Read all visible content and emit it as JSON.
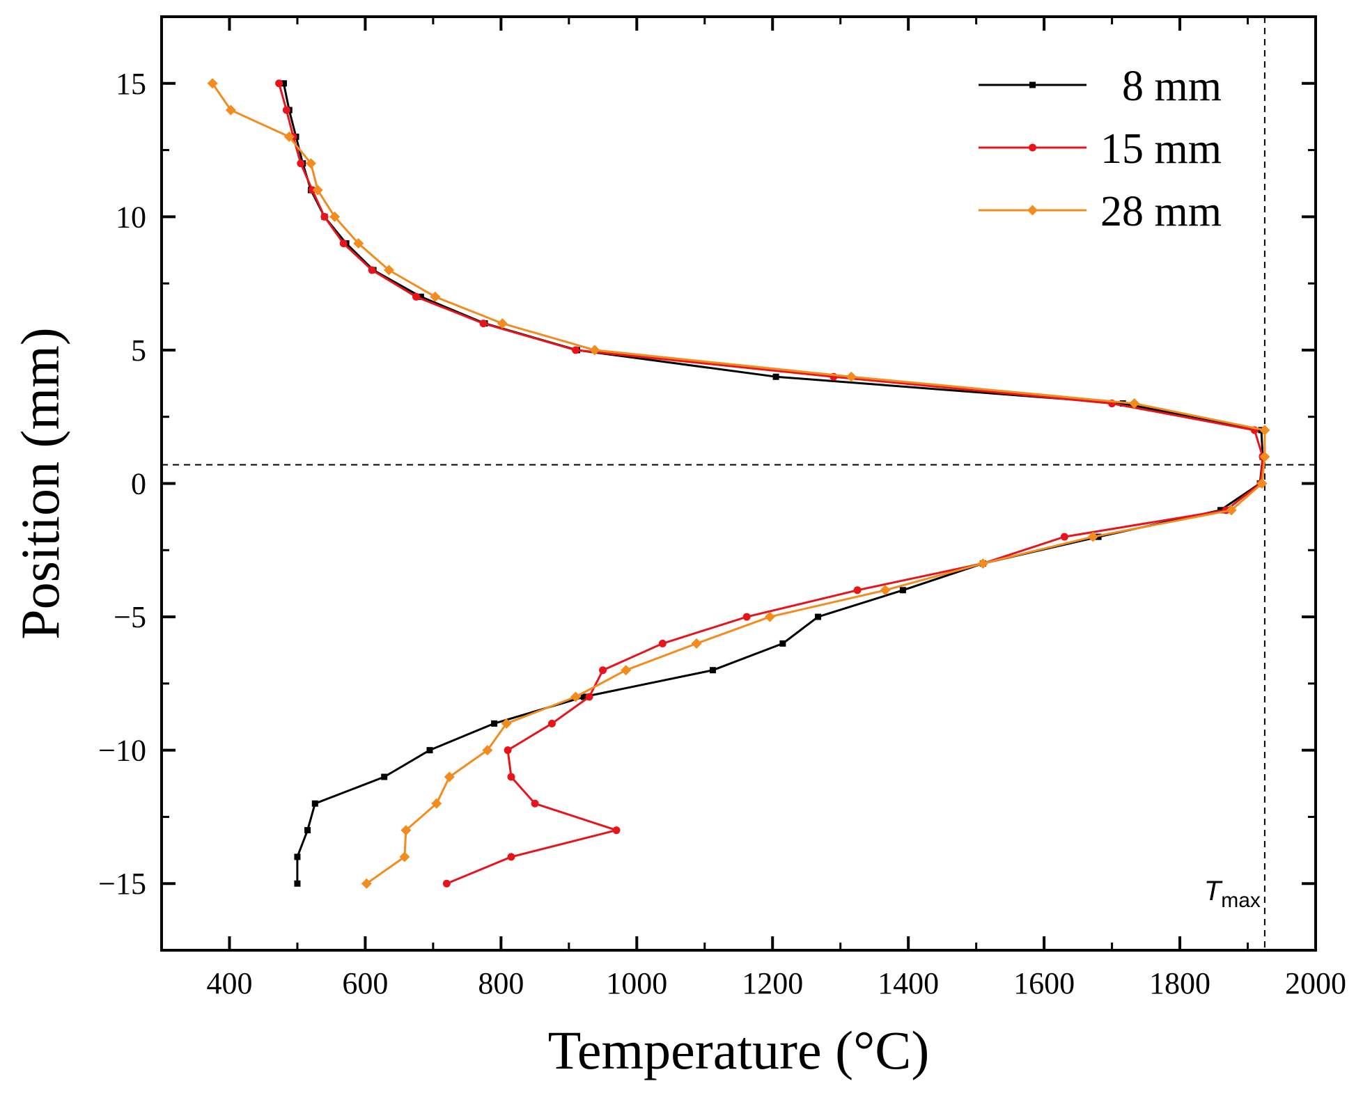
{
  "chart_data": {
    "type": "line",
    "xlabel": "Temperature (°C)",
    "ylabel": "Position (mm)",
    "xlim": [
      300,
      2000
    ],
    "ylim": [
      -17.5,
      17.5
    ],
    "x_ticks": [
      400,
      600,
      800,
      1000,
      1200,
      1400,
      1600,
      1800,
      2000
    ],
    "x_tick_labels": [
      "400",
      "600",
      "800",
      "1000",
      "1200",
      "1400",
      "1600",
      "1800",
      "2000"
    ],
    "y_ticks": [
      15,
      10,
      5,
      0,
      -5,
      -10,
      -15
    ],
    "y_tick_labels": [
      "15",
      "10",
      "5",
      "0",
      "−5",
      "−10",
      "−15"
    ],
    "legend_position": "top-right",
    "reference_lines": {
      "vertical_x": 1925,
      "horizontal_y": 0.7,
      "tmax_label_main": "T",
      "tmax_label_sub": "max"
    },
    "series": [
      {
        "name": "8 mm",
        "legend_label": "  8 mm",
        "color": "#000000",
        "marker": "square",
        "points": [
          [
            480,
            15
          ],
          [
            488,
            14
          ],
          [
            498,
            13
          ],
          [
            508,
            12
          ],
          [
            520,
            11
          ],
          [
            540,
            10
          ],
          [
            572,
            9
          ],
          [
            612,
            8
          ],
          [
            682,
            7
          ],
          [
            776,
            6
          ],
          [
            912,
            5
          ],
          [
            1205,
            4
          ],
          [
            1716,
            3
          ],
          [
            1920,
            2
          ],
          [
            1922,
            1
          ],
          [
            1918,
            0
          ],
          [
            1860,
            -1
          ],
          [
            1680,
            -2
          ],
          [
            1510,
            -3
          ],
          [
            1392,
            -4
          ],
          [
            1267,
            -5
          ],
          [
            1215,
            -6
          ],
          [
            1112,
            -7
          ],
          [
            922,
            -8
          ],
          [
            790,
            -9
          ],
          [
            695,
            -10
          ],
          [
            628,
            -11
          ],
          [
            526,
            -12
          ],
          [
            515,
            -13
          ],
          [
            500,
            -14
          ],
          [
            500,
            -15
          ]
        ]
      },
      {
        "name": "15 mm",
        "legend_label": "15 mm",
        "color": "#e8141c",
        "marker": "circle",
        "points": [
          [
            473,
            15
          ],
          [
            484,
            14
          ],
          [
            494,
            13
          ],
          [
            505,
            12
          ],
          [
            522,
            11
          ],
          [
            540,
            10
          ],
          [
            568,
            9
          ],
          [
            610,
            8
          ],
          [
            675,
            7
          ],
          [
            774,
            6
          ],
          [
            910,
            5
          ],
          [
            1290,
            4
          ],
          [
            1700,
            3
          ],
          [
            1910,
            2
          ],
          [
            1922,
            1
          ],
          [
            1919,
            0
          ],
          [
            1868,
            -1
          ],
          [
            1630,
            -2
          ],
          [
            1510,
            -3
          ],
          [
            1325,
            -4
          ],
          [
            1162,
            -5
          ],
          [
            1038,
            -6
          ],
          [
            950,
            -7
          ],
          [
            930,
            -8
          ],
          [
            875,
            -9
          ],
          [
            810,
            -10
          ],
          [
            815,
            -11
          ],
          [
            850,
            -12
          ],
          [
            970,
            -13
          ],
          [
            815,
            -14
          ],
          [
            720,
            -15
          ]
        ]
      },
      {
        "name": "28 mm",
        "legend_label": "28 mm",
        "color": "#f28c1e",
        "marker": "diamond",
        "points": [
          [
            375,
            15
          ],
          [
            402,
            14
          ],
          [
            488,
            13
          ],
          [
            520,
            12
          ],
          [
            530,
            11
          ],
          [
            555,
            10
          ],
          [
            590,
            9
          ],
          [
            635,
            8
          ],
          [
            703,
            7
          ],
          [
            802,
            6
          ],
          [
            938,
            5
          ],
          [
            1316,
            4
          ],
          [
            1733,
            3
          ],
          [
            1925,
            2
          ],
          [
            1925,
            1
          ],
          [
            1921,
            0
          ],
          [
            1876,
            -1
          ],
          [
            1672,
            -2
          ],
          [
            1510,
            -3
          ],
          [
            1366,
            -4
          ],
          [
            1196,
            -5
          ],
          [
            1088,
            -6
          ],
          [
            984,
            -7
          ],
          [
            910,
            -8
          ],
          [
            808,
            -9
          ],
          [
            780,
            -10
          ],
          [
            724,
            -11
          ],
          [
            705,
            -12
          ],
          [
            660,
            -13
          ],
          [
            658,
            -14
          ],
          [
            602,
            -15
          ]
        ]
      }
    ]
  }
}
